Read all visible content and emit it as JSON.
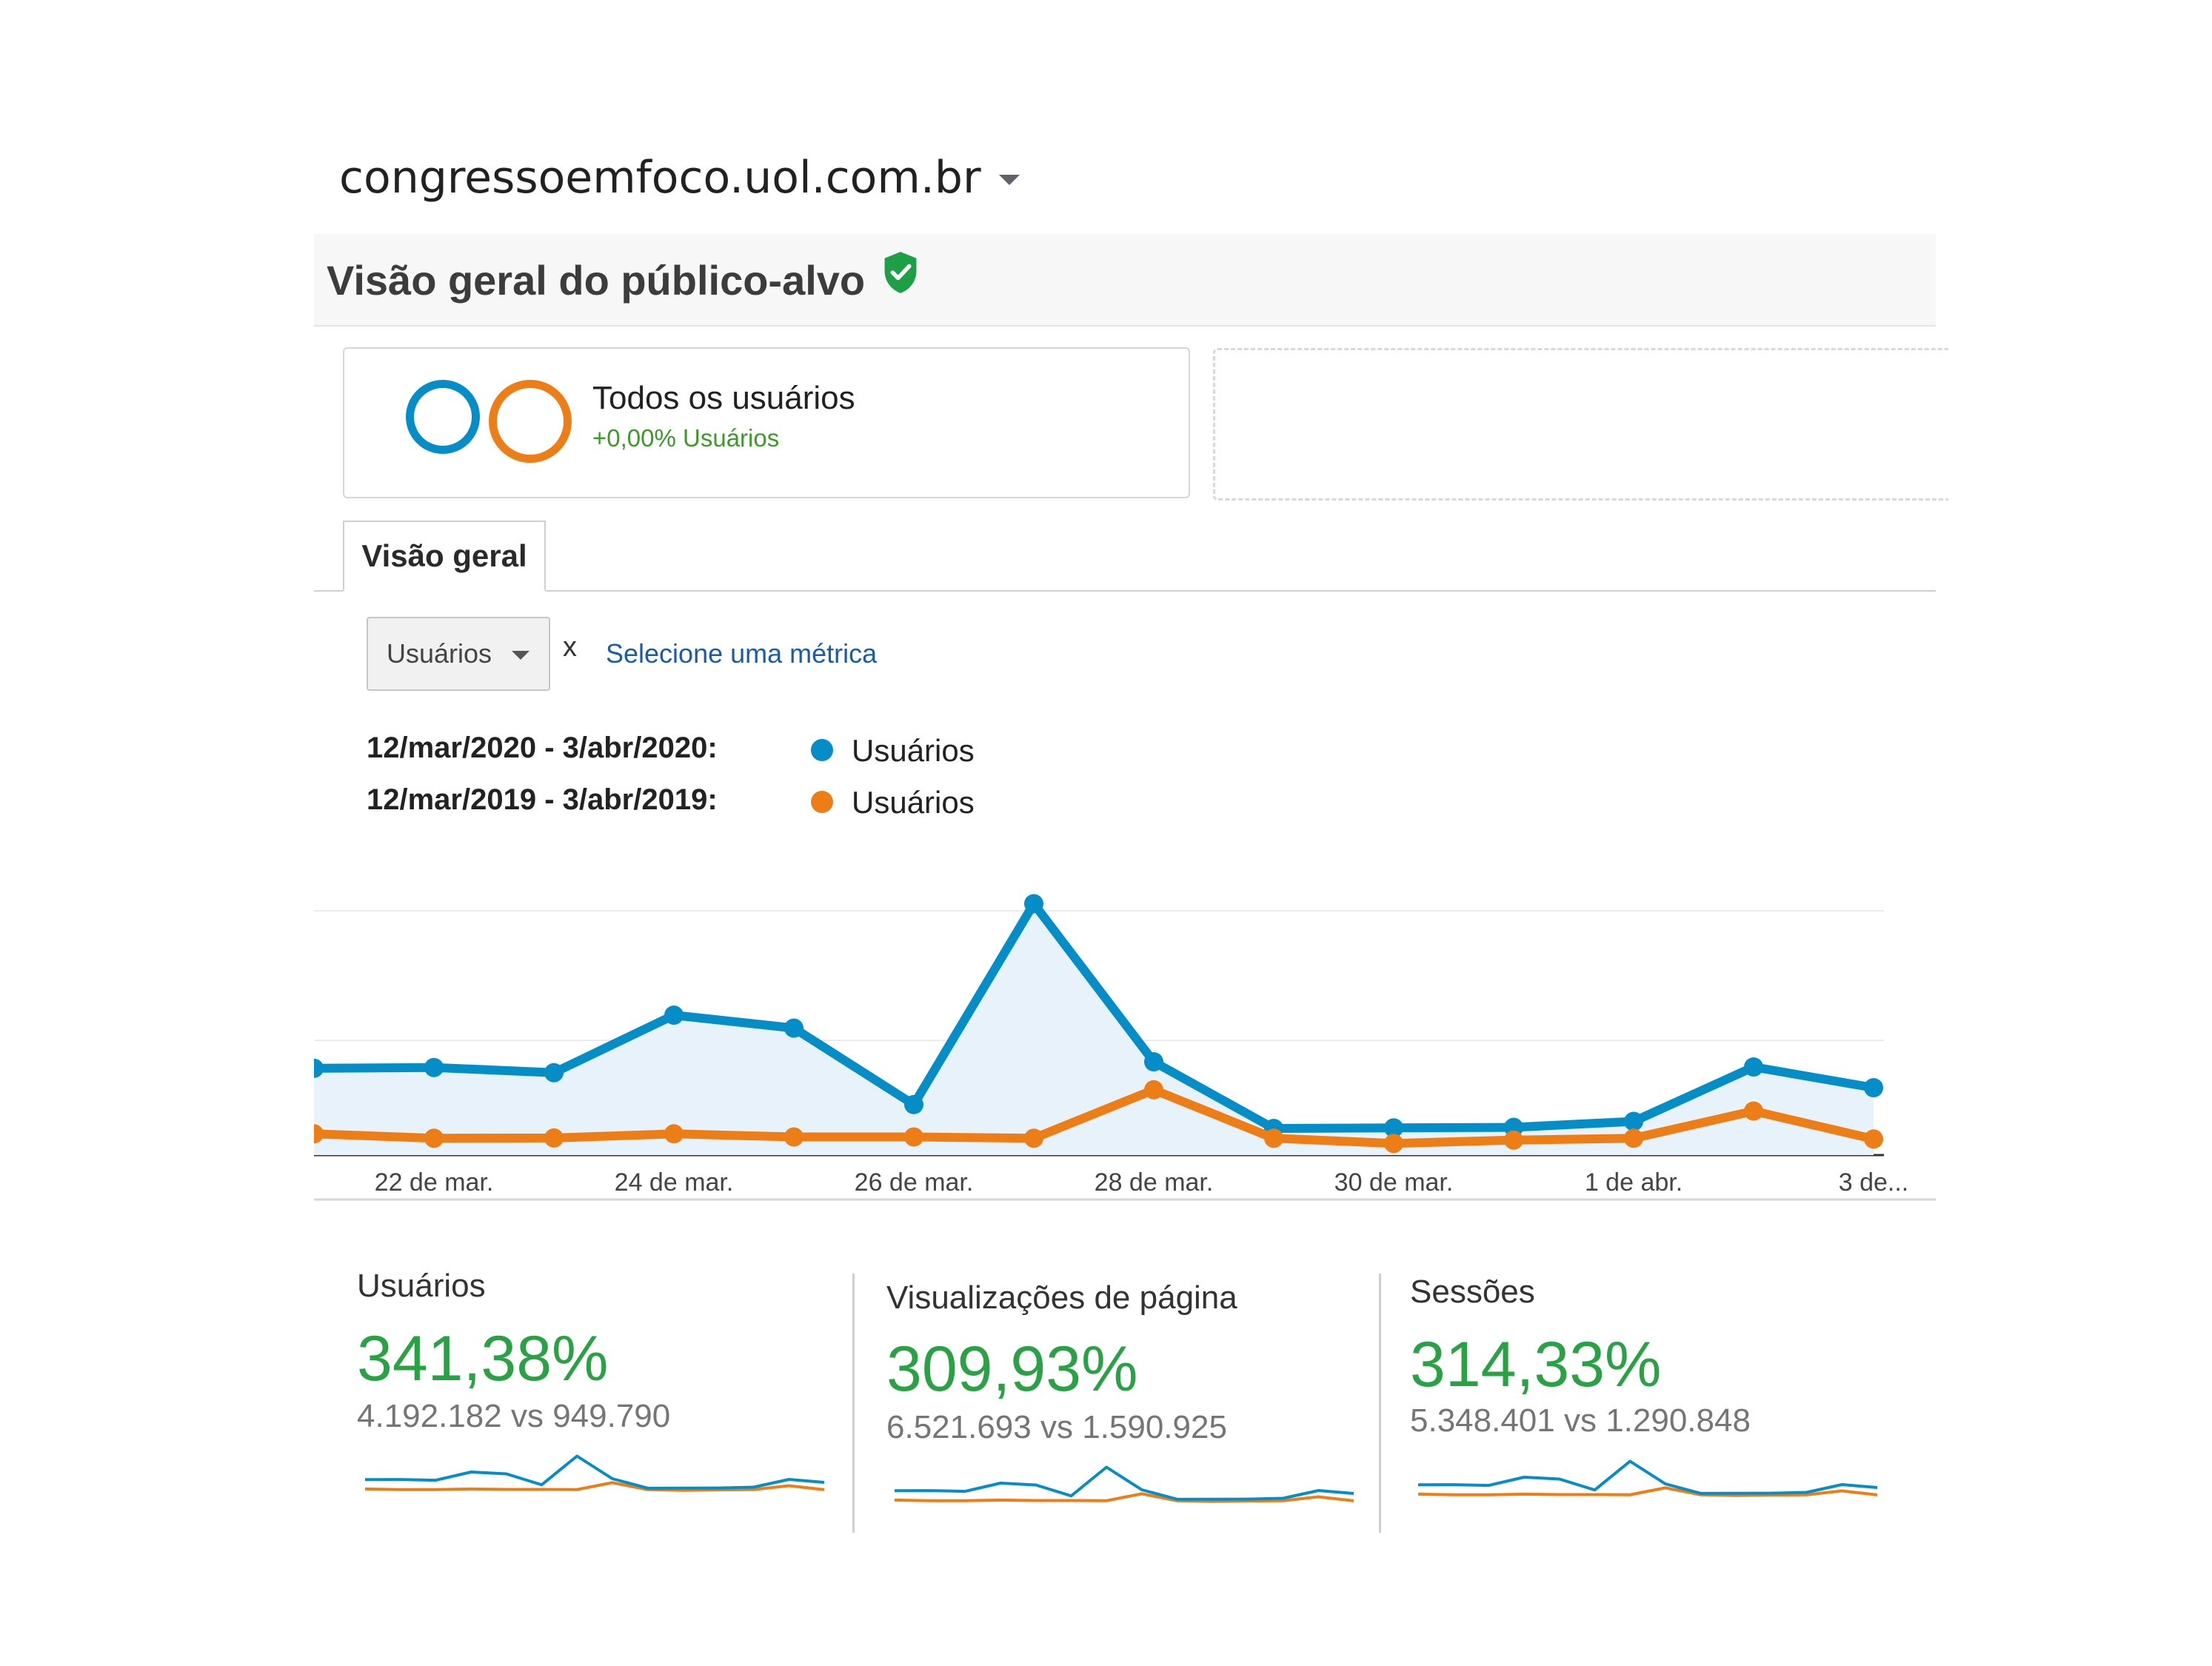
{
  "property": {
    "name": "congressoemfoco.uol.com.br"
  },
  "report": {
    "title": "Visão geral do público-alvo"
  },
  "segment": {
    "name": "Todos os usuários",
    "change": "+0,00% Usuários"
  },
  "tabs": {
    "overview": "Visão geral"
  },
  "metric_selector": {
    "selected": "Usuários",
    "vs": "x",
    "add_metric_link": "Selecione uma métrica"
  },
  "legend": [
    {
      "range": "12/mar/2020 - 3/abr/2020:",
      "metric": "Usuários",
      "color": "#058dc7"
    },
    {
      "range": "12/mar/2019 - 3/abr/2019:",
      "metric": "Usuários",
      "color": "#ed7e17"
    }
  ],
  "chart_data": {
    "type": "line",
    "categories": [
      "",
      "22 de mar.",
      "",
      "24 de mar.",
      "",
      "26 de mar.",
      "",
      "28 de mar.",
      "",
      "30 de mar.",
      "",
      "1 de abr.",
      "",
      "3 de..."
    ],
    "series": [
      {
        "name": "12/mar/2020 - 3/abr/2020: Usuários",
        "color": "#058dc7",
        "values": [
          335,
          338,
          318,
          540,
          490,
          195,
          970,
          360,
          103,
          105,
          107,
          130,
          340,
          260
        ]
      },
      {
        "name": "12/mar/2019 - 3/abr/2019: Usuários",
        "color": "#ed7e17",
        "values": [
          82,
          65,
          66,
          82,
          70,
          70,
          65,
          252,
          65,
          45,
          58,
          65,
          170,
          62
        ]
      }
    ],
    "grid": true
  },
  "scorecards": [
    {
      "title": "Usuários",
      "percent": "341,38%",
      "compare": "4.192.182 vs 949.790"
    },
    {
      "title": "Visualizações de página",
      "percent": "309,93%",
      "compare": "6.521.693 vs 1.590.925"
    },
    {
      "title": "Sessões",
      "percent": "314,33%",
      "compare": "5.348.401 vs 1.290.848"
    }
  ],
  "colors": {
    "current": "#058dc7",
    "previous": "#ed7e17",
    "positive": "#2aa145",
    "link": "#1a5ca8"
  },
  "icons": {
    "verified": "shield-check-icon",
    "dropdown": "caret-down-icon"
  }
}
